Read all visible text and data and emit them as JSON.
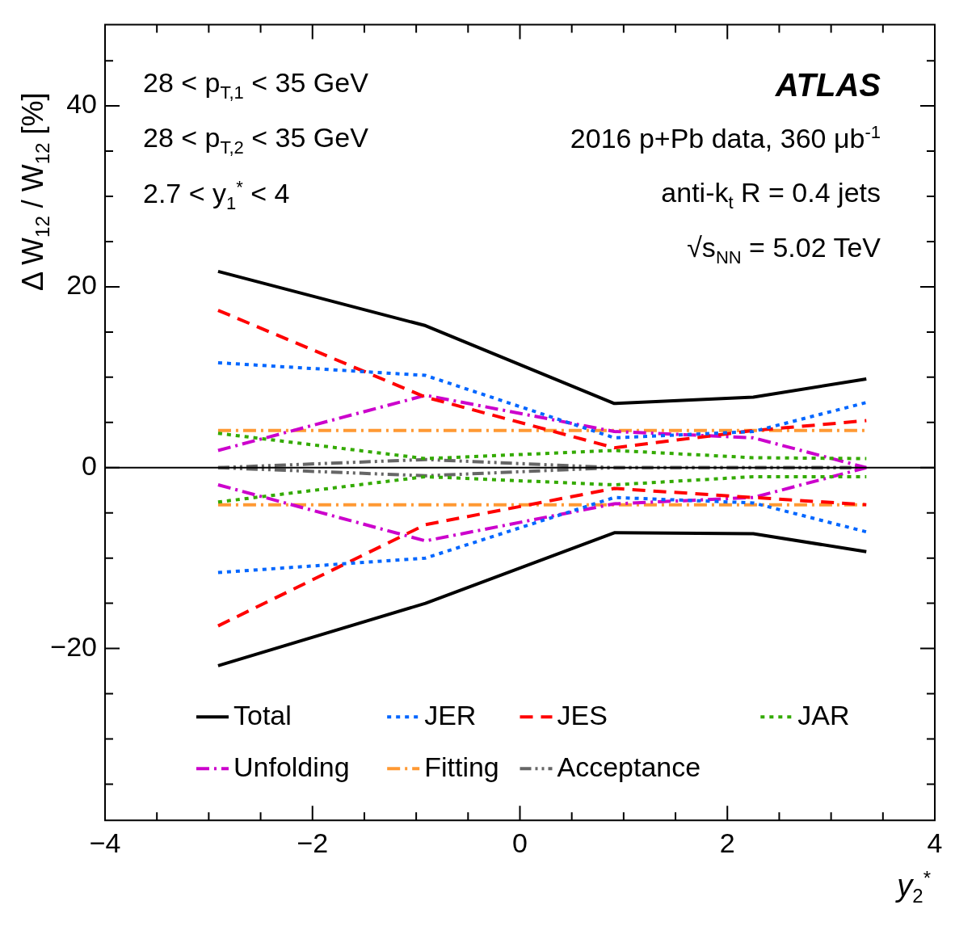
{
  "chart_data": {
    "type": "line",
    "xlabel": "y$_{2}$$^{*}$",
    "ylabel": "Δ W$_{12}$ / W$_{12}$ [%]",
    "x": [
      -2.91,
      -0.91,
      0.91,
      2.25,
      3.34
    ],
    "xlim": [
      -4,
      4
    ],
    "xticks": [
      -4,
      {
        "value": -3.5,
        "label": null
      },
      {
        "value": -3,
        "label": null
      },
      {
        "value": -2.5,
        "label": null
      },
      -2,
      {
        "value": -1.5,
        "label": null
      },
      {
        "value": -1,
        "label": null
      },
      {
        "value": -0.5,
        "label": null
      },
      0,
      {
        "value": 0.5,
        "label": null
      },
      {
        "value": 1,
        "label": null
      },
      {
        "value": 1.5,
        "label": null
      },
      2,
      {
        "value": 2.5,
        "label": null
      },
      {
        "value": 3,
        "label": null
      },
      {
        "value": 3.5,
        "label": null
      },
      4
    ],
    "ylim": [
      -39,
      49
    ],
    "yticks": [
      {
        "value": -35,
        "label": null
      },
      {
        "value": -30,
        "label": null
      },
      {
        "value": -25,
        "label": null
      },
      {
        "value": -20,
        "label": "−20"
      },
      {
        "value": -15,
        "label": null
      },
      {
        "value": -10,
        "label": null
      },
      {
        "value": -5,
        "label": null
      },
      0,
      {
        "value": 5,
        "label": null
      },
      {
        "value": 10,
        "label": null
      },
      {
        "value": 15,
        "label": null
      },
      20,
      {
        "value": 25,
        "label": null
      },
      {
        "value": 30,
        "label": null
      },
      {
        "value": 35,
        "label": null
      },
      40,
      {
        "value": 45,
        "label": null
      }
    ],
    "grid": false,
    "legend": "bottom",
    "marker": "none",
    "ref_lines": [
      {
        "axis": "y",
        "value": 0,
        "color": "#000000",
        "line_style": "solid"
      }
    ],
    "annotations": [
      "28 < p$_{T,1}$ < 35 GeV",
      "28 < p$_{T,2}$ < 35 GeV",
      "2.7 < y$_{1}$$^{*}$ < 4",
      "ATLAS",
      "2016 p+Pb data, 360 μb$^{-1}$",
      "anti-k$_{t}$ R = 0.4 jets",
      "√s$_{NN}$ = 5.02 TeV"
    ],
    "series": [
      {
        "name": "Total",
        "color": "#000000",
        "line_style": "solid",
        "values": [
          21.7,
          15.7,
          7.1,
          7.8,
          9.8
        ]
      },
      {
        "color": "#000000",
        "line_style": "solid",
        "values": [
          -21.9,
          -15.0,
          -7.2,
          -7.3,
          -9.3
        ]
      },
      {
        "name": "JER",
        "color": "#0066ff",
        "line_style": "dotted",
        "values": [
          11.6,
          10.2,
          3.3,
          4.0,
          7.2
        ]
      },
      {
        "color": "#0066ff",
        "line_style": "dotted",
        "values": [
          -11.6,
          -10.0,
          -3.3,
          -3.9,
          -7.1
        ]
      },
      {
        "name": "JES",
        "color": "#ff0000",
        "line_style": "dashed",
        "values": [
          17.4,
          7.8,
          2.2,
          4.1,
          5.2
        ]
      },
      {
        "color": "#ff0000",
        "line_style": "dashed",
        "values": [
          -17.5,
          -6.3,
          -2.3,
          -3.3,
          -4.1
        ]
      },
      {
        "name": "JAR",
        "color": "#33aa00",
        "line_style": "dotted",
        "values": [
          3.8,
          1.0,
          1.9,
          1.1,
          1.0
        ]
      },
      {
        "color": "#33aa00",
        "line_style": "dotted",
        "values": [
          -3.8,
          -1.0,
          -1.9,
          -1.0,
          -1.0
        ]
      },
      {
        "name": "Unfolding",
        "color": "#cc00cc",
        "line_style": "dashdot",
        "values": [
          1.9,
          8.0,
          4.0,
          3.3,
          0
        ]
      },
      {
        "color": "#cc00cc",
        "line_style": "dashdot",
        "values": [
          -1.9,
          -8.1,
          -4.0,
          -3.3,
          0
        ]
      },
      {
        "name": "Fitting",
        "color": "#ff9933",
        "line_style": "dashdot",
        "values": [
          4.1,
          4.1,
          4.1,
          4.1,
          4.1
        ]
      },
      {
        "color": "#ff9933",
        "line_style": "dashdot",
        "values": [
          -4.1,
          -4.1,
          -4.1,
          -4.1,
          -4.1
        ]
      },
      {
        "name": "Acceptance",
        "color": "#666666",
        "line_style": "dashdotdot",
        "values": [
          0,
          0.9,
          0,
          0,
          0
        ]
      },
      {
        "color": "#666666",
        "line_style": "dashdotdot",
        "values": [
          0,
          -0.9,
          0,
          0,
          0
        ]
      }
    ]
  }
}
